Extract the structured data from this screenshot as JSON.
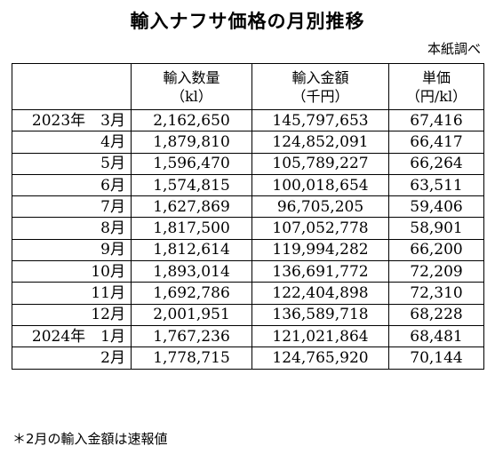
{
  "title": "輸入ナフサ価格の月別推移",
  "source": "本紙調べ",
  "header": {
    "period": "",
    "volume": "輸入数量",
    "volume_unit": "（kl）",
    "amount": "輸入金額",
    "amount_unit": "（千円）",
    "price": "単価",
    "price_unit": "（円/kl）"
  },
  "rows": [
    {
      "period": "2023年　3月",
      "volume": "2,162,650",
      "amount": "145,797,653",
      "price": "67,416"
    },
    {
      "period": "4月",
      "volume": "1,879,810",
      "amount": "124,852,091",
      "price": "66,417"
    },
    {
      "period": "5月",
      "volume": "1,596,470",
      "amount": "105,789,227",
      "price": "66,264"
    },
    {
      "period": "6月",
      "volume": "1,574,815",
      "amount": "100,018,654",
      "price": "63,511"
    },
    {
      "period": "7月",
      "volume": "1,627,869",
      "amount": "96,705,205",
      "price": "59,406"
    },
    {
      "period": "8月",
      "volume": "1,817,500",
      "amount": "107,052,778",
      "price": "58,901"
    },
    {
      "period": "9月",
      "volume": "1,812,614",
      "amount": "119,994,282",
      "price": "66,200"
    },
    {
      "period": "10月",
      "volume": "1,893,014",
      "amount": "136,691,772",
      "price": "72,209"
    },
    {
      "period": "11月",
      "volume": "1,692,786",
      "amount": "122,404,898",
      "price": "72,310"
    },
    {
      "period": "12月",
      "volume": "2,001,951",
      "amount": "136,589,718",
      "price": "68,228"
    },
    {
      "period": "2024年　1月",
      "volume": "1,767,236",
      "amount": "121,021,864",
      "price": "68,481"
    },
    {
      "period": "2月",
      "volume": "1,778,715",
      "amount": "124,765,920",
      "price": "70,144"
    }
  ],
  "footnote": "＊2月の輸入金額は速報値"
}
